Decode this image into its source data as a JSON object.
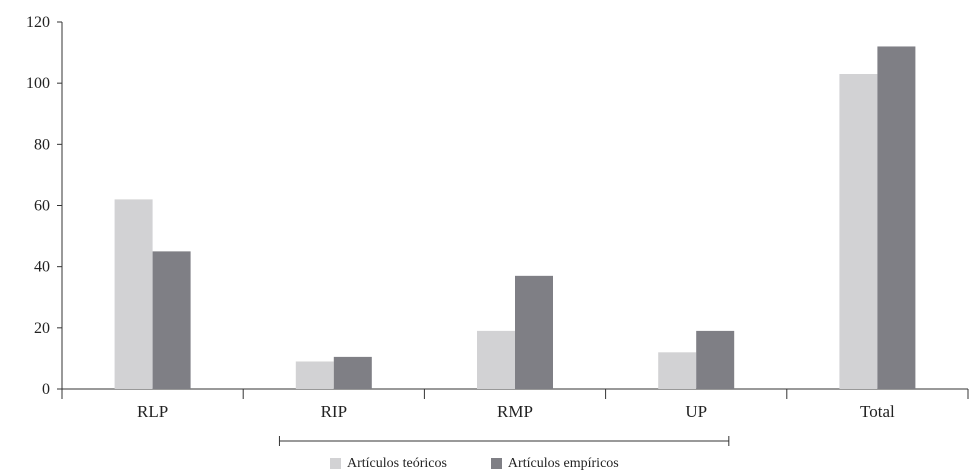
{
  "chart_data": {
    "type": "bar",
    "categories": [
      "RLP",
      "RIP",
      "RMP",
      "UP",
      "Total"
    ],
    "series": [
      {
        "name": "Artículos teóricos",
        "values": [
          62,
          9,
          19,
          12,
          103
        ],
        "color": "#d2d2d4"
      },
      {
        "name": "Artículos empíricos",
        "values": [
          45,
          10.5,
          37,
          19,
          112
        ],
        "color": "#7f7f85"
      }
    ],
    "ylim": [
      0,
      120
    ],
    "yticks": [
      "0",
      "20",
      "40",
      "60",
      "80",
      "100",
      "120"
    ],
    "grid": false,
    "legend_position": "bottom-center",
    "bracket": {
      "from_category": "RIP",
      "to_category": "UP"
    }
  }
}
